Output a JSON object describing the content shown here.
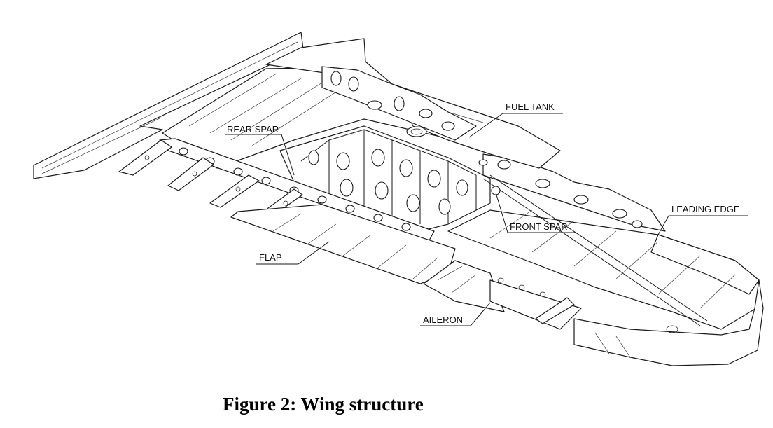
{
  "labels": {
    "fuel_tank": "FUEL TANK",
    "rear_spar": "REAR SPAR",
    "leading_edge": "LEADING EDGE",
    "front_spar": "FRONT SPAR",
    "flap": "FLAP",
    "aileron": "AILERON"
  },
  "caption": "Figure 2: Wing structure"
}
